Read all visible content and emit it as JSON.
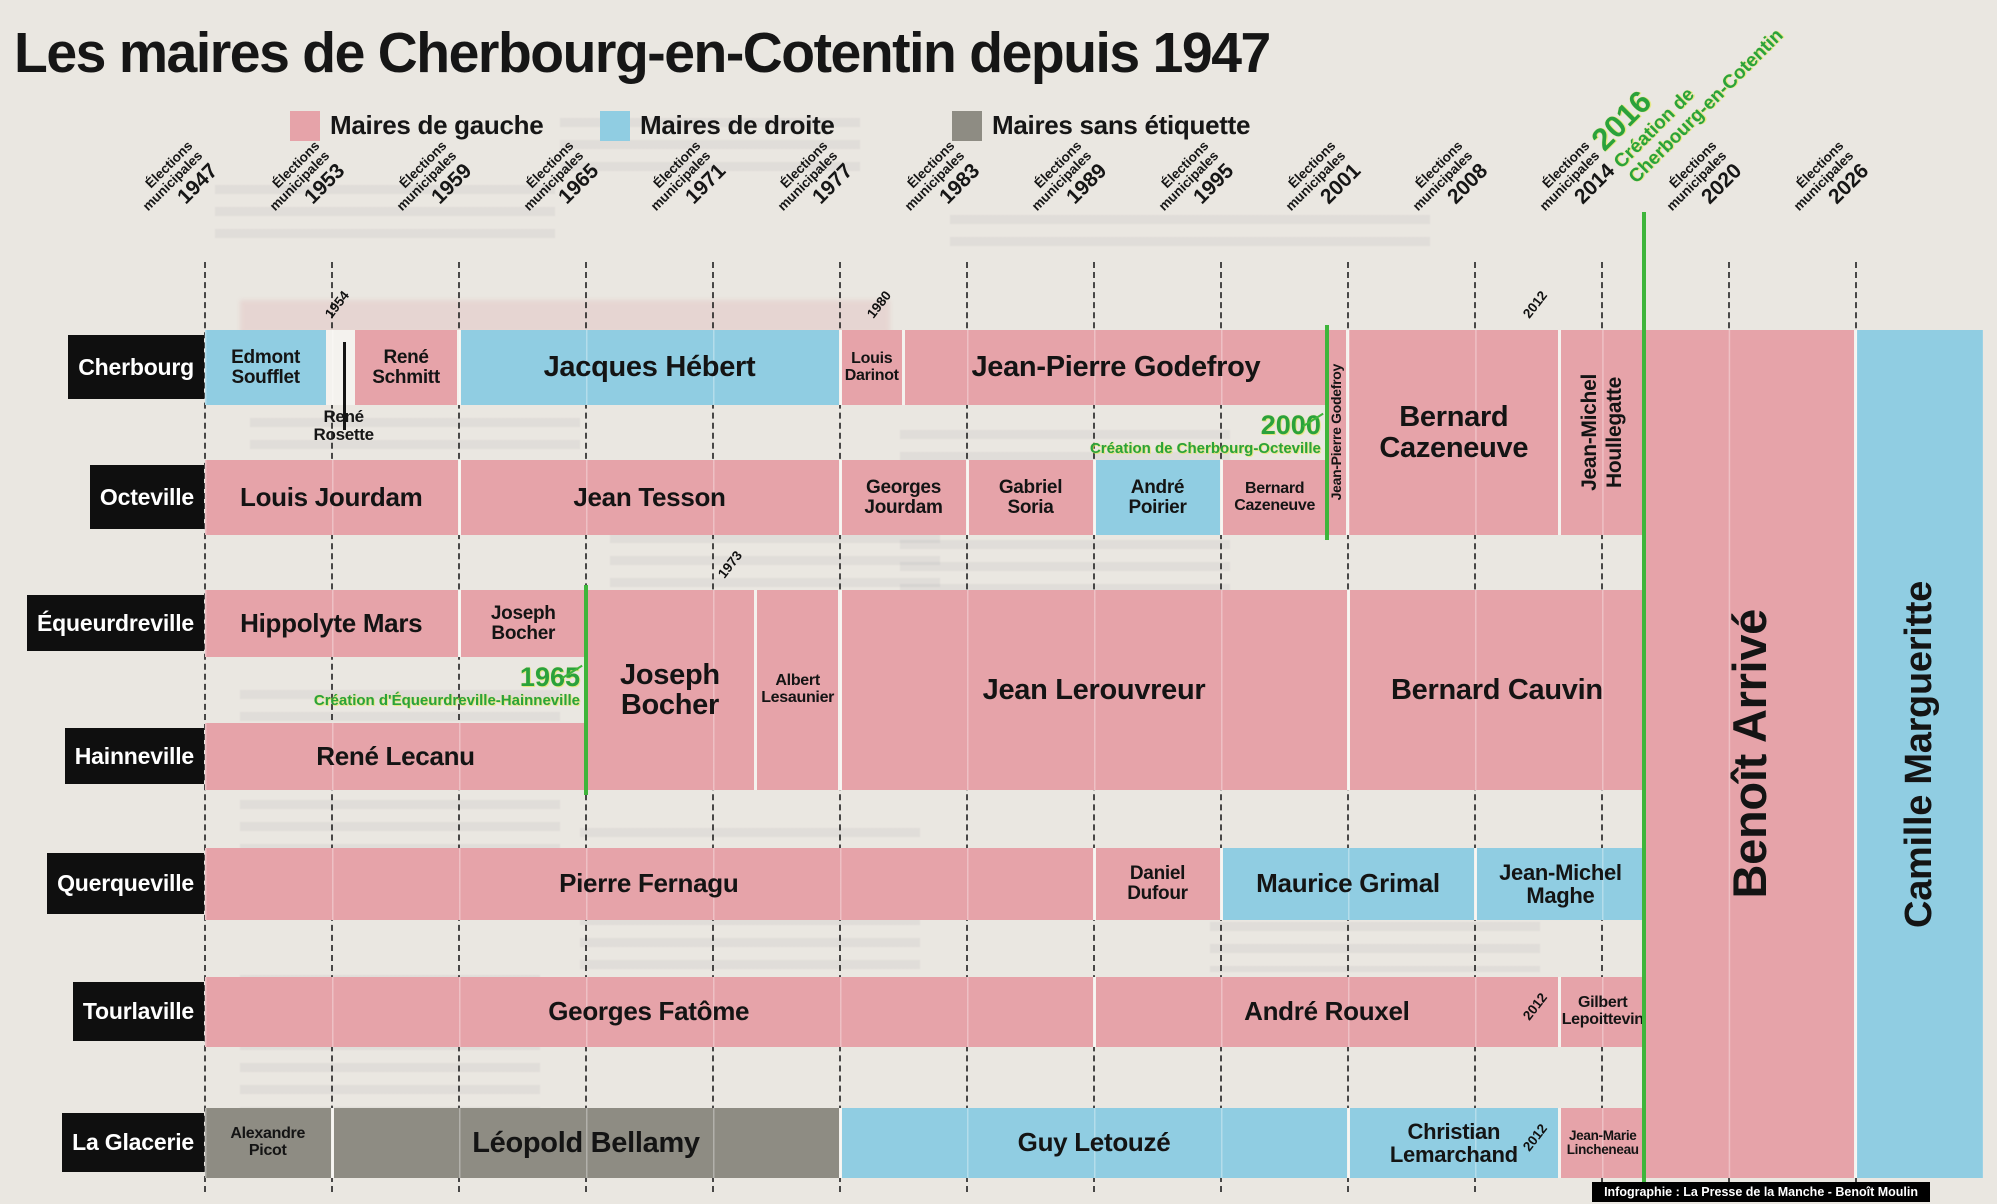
{
  "title": "Les maires de Cherbourg-en-Cotentin depuis 1947",
  "legend": [
    {
      "label": "Maires de gauche",
      "party": "gauche"
    },
    {
      "label": "Maires de droite",
      "party": "droite"
    },
    {
      "label": "Maires sans étiquette",
      "party": "sans étiquette"
    }
  ],
  "colors": {
    "gauche": "#e6a3a9",
    "droite": "#90cde2",
    "sans étiquette": "#8e8c83",
    "green_line": "#3eb53b",
    "green_text": "#2aa23c",
    "label_box": "#0f0f0f"
  },
  "elections_header": {
    "line1": "Élections",
    "line2": "municipales"
  },
  "credit": "Infographie : La Presse de la Manche - Benoît Moulin",
  "chart_data": {
    "type": "gantt-timeline",
    "title": "Les maires de Cherbourg-en-Cotentin depuis 1947",
    "election_years": [
      1947,
      1953,
      1959,
      1965,
      1971,
      1977,
      1983,
      1989,
      1995,
      2001,
      2008,
      2014,
      2020,
      2026
    ],
    "timeline_end": 2032,
    "rows": [
      {
        "id": "cherbourg",
        "label": "Cherbourg"
      },
      {
        "id": "octeville",
        "label": "Octeville"
      },
      {
        "id": "equeurdreville",
        "label": "Équeurdreville"
      },
      {
        "id": "hainneville",
        "label": "Hainneville"
      },
      {
        "id": "querqueville",
        "label": "Querqueville"
      },
      {
        "id": "tourlaville",
        "label": "Tourlaville"
      },
      {
        "id": "laglacerie",
        "label": "La Glacerie"
      }
    ],
    "groups": [
      {
        "id": "cherbourg-track",
        "rows": [
          "cherbourg",
          "cherbourg"
        ],
        "from": 1947,
        "to": 2000,
        "segments": [
          {
            "from": 1947,
            "to": 1952.8,
            "party": "droite",
            "lines": [
              "Edmont",
              "Soufflet"
            ],
            "size": "sm"
          },
          {
            "from": 1954,
            "to": 1959,
            "party": "gauche",
            "lines": [
              "René",
              "Schmitt"
            ],
            "size": "sm"
          },
          {
            "from": 1959,
            "to": 1977,
            "party": "droite",
            "lines": [
              "Jacques Hébert"
            ],
            "size": "xl"
          },
          {
            "from": 1977,
            "to": 1980,
            "party": "gauche",
            "lines": [
              "Louis",
              "Darinot"
            ],
            "size": "xs"
          },
          {
            "from": 1980,
            "to": 2000,
            "party": "gauche",
            "lines": [
              "Jean-Pierre Godefroy"
            ],
            "size": "xl"
          }
        ]
      },
      {
        "id": "octeville-track",
        "rows": [
          "octeville",
          "octeville"
        ],
        "from": 1947,
        "to": 2000,
        "segments": [
          {
            "from": 1947,
            "to": 1959,
            "party": "gauche",
            "lines": [
              "Louis Jourdam"
            ],
            "size": "lg"
          },
          {
            "from": 1959,
            "to": 1977,
            "party": "gauche",
            "lines": [
              "Jean Tesson"
            ],
            "size": "lg"
          },
          {
            "from": 1977,
            "to": 1983,
            "party": "gauche",
            "lines": [
              "Georges",
              "Jourdam"
            ],
            "size": "sm"
          },
          {
            "from": 1983,
            "to": 1989,
            "party": "gauche",
            "lines": [
              "Gabriel",
              "Soria"
            ],
            "size": "sm"
          },
          {
            "from": 1989,
            "to": 1995,
            "party": "droite",
            "lines": [
              "André",
              "Poirier"
            ],
            "size": "sm"
          },
          {
            "from": 1995,
            "to": 2000,
            "party": "gauche",
            "lines": [
              "Bernard",
              "Cazeneuve"
            ],
            "size": "xs"
          }
        ]
      },
      {
        "id": "cherbourg-octeville",
        "rows": [
          "cherbourg",
          "octeville"
        ],
        "from": 2000,
        "to": 2016,
        "segments": [
          {
            "from": 2000,
            "to": 2001,
            "party": "gauche",
            "lines": [
              "Jean-Pierre Godefroy"
            ],
            "size": "xs",
            "orient": "v"
          },
          {
            "from": 2001,
            "to": 2012,
            "party": "gauche",
            "lines": [
              "Bernard",
              "Cazeneuve"
            ],
            "size": "xl"
          },
          {
            "from": 2012,
            "to": 2016,
            "party": "gauche",
            "lines": [
              "Jean-Michel",
              "Houllegatte"
            ],
            "size": "md",
            "orient": "v"
          }
        ]
      },
      {
        "id": "equeurdreville-track",
        "rows": [
          "equeurdreville",
          "equeurdreville"
        ],
        "from": 1947,
        "to": 1965,
        "segments": [
          {
            "from": 1947,
            "to": 1959,
            "party": "gauche",
            "lines": [
              "Hippolyte Mars"
            ],
            "size": "lg"
          },
          {
            "from": 1959,
            "to": 1965,
            "party": "gauche",
            "lines": [
              "Joseph",
              "Bocher"
            ],
            "size": "sm"
          }
        ]
      },
      {
        "id": "hainneville-track",
        "rows": [
          "hainneville",
          "hainneville"
        ],
        "from": 1947,
        "to": 1965,
        "segments": [
          {
            "from": 1947,
            "to": 1965,
            "party": "gauche",
            "lines": [
              "René Lecanu"
            ],
            "size": "lg"
          }
        ]
      },
      {
        "id": "equeurdreville-hainneville",
        "rows": [
          "equeurdreville",
          "hainneville"
        ],
        "from": 1965,
        "to": 2016,
        "segments": [
          {
            "from": 1965,
            "to": 1973,
            "party": "gauche",
            "lines": [
              "Joseph",
              "Bocher"
            ],
            "size": "xl"
          },
          {
            "from": 1973,
            "to": 1977,
            "party": "gauche",
            "lines": [
              "Albert",
              "Lesaunier"
            ],
            "size": "xs"
          },
          {
            "from": 1977,
            "to": 2001,
            "party": "gauche",
            "lines": [
              "Jean Lerouvreur"
            ],
            "size": "xl"
          },
          {
            "from": 2001,
            "to": 2016,
            "party": "gauche",
            "lines": [
              "Bernard Cauvin"
            ],
            "size": "xl"
          }
        ]
      },
      {
        "id": "querqueville-track",
        "rows": [
          "querqueville",
          "querqueville"
        ],
        "from": 1947,
        "to": 2016,
        "segments": [
          {
            "from": 1947,
            "to": 1989,
            "party": "gauche",
            "lines": [
              "Pierre Fernagu"
            ],
            "size": "lg"
          },
          {
            "from": 1989,
            "to": 1995,
            "party": "gauche",
            "lines": [
              "Daniel",
              "Dufour"
            ],
            "size": "sm"
          },
          {
            "from": 1995,
            "to": 2008,
            "party": "droite",
            "lines": [
              "Maurice Grimal"
            ],
            "size": "lg"
          },
          {
            "from": 2008,
            "to": 2016,
            "party": "droite",
            "lines": [
              "Jean-Michel",
              "Maghe"
            ],
            "size": "md2"
          }
        ]
      },
      {
        "id": "tourlaville-track",
        "rows": [
          "tourlaville",
          "tourlaville"
        ],
        "from": 1947,
        "to": 2016,
        "segments": [
          {
            "from": 1947,
            "to": 1989,
            "party": "gauche",
            "lines": [
              "Georges Fatôme"
            ],
            "size": "lg"
          },
          {
            "from": 1989,
            "to": 2012,
            "party": "gauche",
            "lines": [
              "André Rouxel"
            ],
            "size": "lg"
          },
          {
            "from": 2012,
            "to": 2016,
            "party": "gauche",
            "lines": [
              "Gilbert",
              "Lepoittevin"
            ],
            "size": "xs"
          }
        ]
      },
      {
        "id": "laglacerie-track",
        "rows": [
          "laglacerie",
          "laglacerie"
        ],
        "from": 1947,
        "to": 2016,
        "segments": [
          {
            "from": 1947,
            "to": 1953,
            "party": "sans étiquette",
            "lines": [
              "Alexandre",
              "Picot"
            ],
            "size": "xs"
          },
          {
            "from": 1953,
            "to": 1977,
            "party": "sans étiquette",
            "lines": [
              "Léopold Bellamy"
            ],
            "size": "xl"
          },
          {
            "from": 1977,
            "to": 2001,
            "party": "droite",
            "lines": [
              "Guy Letouzé"
            ],
            "size": "lg"
          },
          {
            "from": 2001,
            "to": 2012,
            "party": "droite",
            "lines": [
              "Christian",
              "Lemarchand"
            ],
            "size": "md2"
          },
          {
            "from": 2012,
            "to": 2016,
            "party": "gauche",
            "lines": [
              "Jean-Marie",
              "Lincheneau"
            ],
            "size": "xxs"
          }
        ]
      },
      {
        "id": "cherbourg-en-cotentin",
        "rows": [
          "cherbourg",
          "laglacerie"
        ],
        "from": 2016,
        "to": 2032,
        "segments": [
          {
            "from": 2016,
            "to": 2026,
            "party": "gauche",
            "lines": [
              "Benoît Arrivé"
            ],
            "size": "huge",
            "orient": "v"
          },
          {
            "from": 2026,
            "to": 2032,
            "party": "droite",
            "lines": [
              "Camille Margueritte"
            ],
            "size": "big",
            "orient": "v"
          }
        ]
      }
    ],
    "markers": [
      {
        "year": 1953.55,
        "row": "cherbourg",
        "label": "1954",
        "type": "line",
        "note_lines": [
          "René",
          "Rosette"
        ]
      },
      {
        "year": 1980,
        "row": "cherbourg",
        "label": "1980",
        "type": "tag"
      },
      {
        "year": 2012,
        "row": "cherbourg",
        "label": "2012",
        "type": "tag"
      },
      {
        "year": 1973,
        "row": "equeurdreville",
        "label": "1973",
        "type": "tag"
      },
      {
        "year": 2012,
        "row": "tourlaville",
        "label": "2012",
        "type": "tag-in"
      },
      {
        "year": 2012,
        "row": "laglacerie",
        "label": "2012",
        "type": "tag-in"
      }
    ],
    "mergers": [
      {
        "year": 1965,
        "big": "1965",
        "text": "Création d'Équeurdreville-Hainneville",
        "span": [
          "equeurdreville",
          "hainneville"
        ]
      },
      {
        "year": 2000,
        "big": "2000",
        "text": "Création de Cherbourg-Octeville",
        "span": [
          "cherbourg",
          "octeville"
        ]
      },
      {
        "year": 2016,
        "big": "2016",
        "text_lines": [
          "Création de",
          "Cherbourg-en-Cotentin"
        ],
        "span": [
          "cherbourg",
          "laglacerie"
        ]
      }
    ]
  }
}
